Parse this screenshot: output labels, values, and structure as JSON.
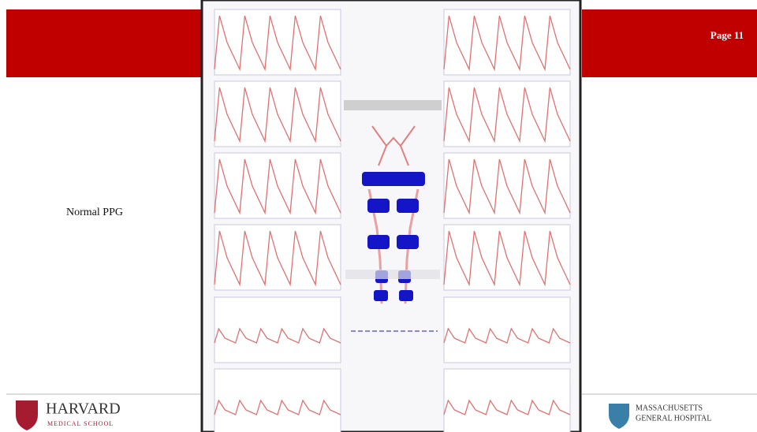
{
  "slide": {
    "page": "Page 11",
    "caption": "Normal PPG",
    "left_logo": {
      "name": "HARVARD",
      "subname": "MEDICAL SCHOOL"
    },
    "right_logo": {
      "line1": "MASSACHUSETTS",
      "line2": "GENERAL HOSPITAL"
    }
  }
}
